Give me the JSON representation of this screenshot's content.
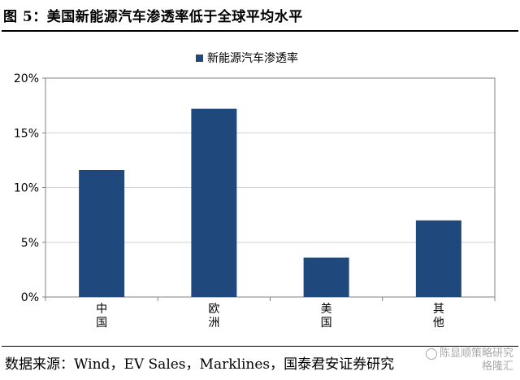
{
  "figure": {
    "title": "图 5：美国新能源汽车渗透率低于全球平均水平",
    "source": "数据来源：Wind，EV Sales，Marklines，国泰君安证券研究"
  },
  "watermark": {
    "line1": "陈显顺策略研究",
    "line2": "格隆汇"
  },
  "colors": {
    "bar": "#1f497d",
    "grid": "#d0d0d0",
    "axis": "#808080"
  },
  "chart_data": {
    "type": "bar",
    "categories": [
      "中国",
      "欧洲",
      "美国",
      "其他"
    ],
    "series": [
      {
        "name": "新能源汽车渗透率",
        "values": [
          11.6,
          17.2,
          3.6,
          7.0
        ]
      }
    ],
    "ylim": [
      0,
      20
    ],
    "yticks": [
      "0%",
      "5%",
      "10%",
      "15%",
      "20%"
    ],
    "ytick_values": [
      0,
      5,
      10,
      15,
      20
    ],
    "legend_position": "top-center",
    "grid": true
  }
}
